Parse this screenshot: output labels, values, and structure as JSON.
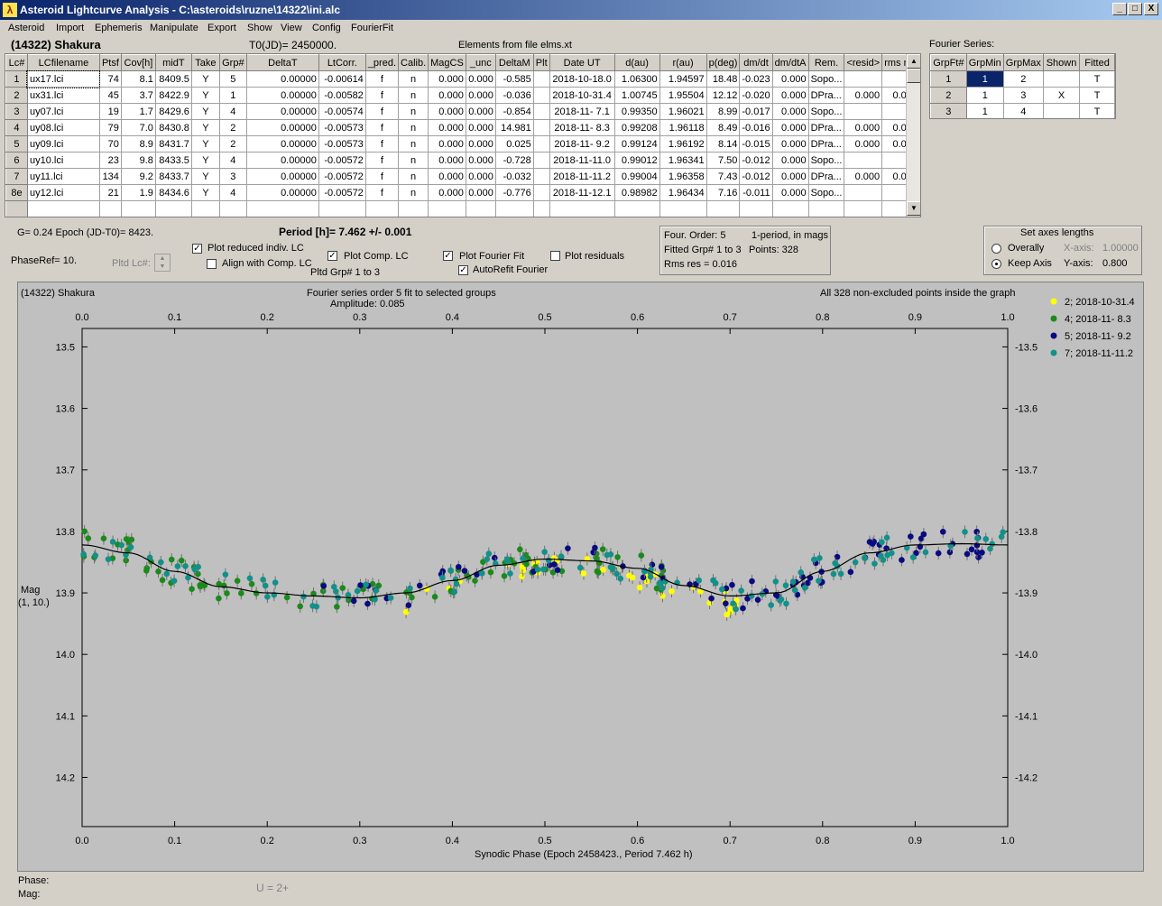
{
  "window": {
    "title": "Asteroid Lightcurve Analysis - C:\\asteroids\\ruzne\\14322\\ini.alc",
    "min_label": "_",
    "max_label": "□",
    "close_label": "X"
  },
  "menu": [
    "Asteroid",
    "Import",
    "Ephemeris",
    "Manipulate",
    "Export",
    "Show",
    "View",
    "Config",
    "FourierFit"
  ],
  "header": {
    "asteroid": "(14322) Shakura",
    "t0": "T0(JD)= 2450000.",
    "elements": "Elements from file elms.xt",
    "fourier_label": "Fourier Series:"
  },
  "lc_table": {
    "columns": [
      "Lc#",
      "LCfilename",
      "Ptsf",
      "Cov[h]",
      "midT",
      "Take",
      "Grp#",
      "DeltaT",
      "LtCorr.",
      "_pred.",
      "Calib.",
      "MagCS",
      "_unc",
      "DeltaM",
      "Plt",
      "Date UT",
      "d(au)",
      "r(au)",
      "p(deg)",
      "dm/dt",
      "dm/dtA",
      "Rem.",
      "<resid>",
      "rms res"
    ],
    "rows": [
      [
        "1",
        "ux17.lci",
        "74",
        "8.1",
        "8409.5",
        "Y",
        "5",
        "0.00000",
        "-0.00614",
        "f",
        "n",
        "0.000",
        "0.000",
        "-0.585",
        "",
        "2018-10-18.0",
        "1.06300",
        "1.94597",
        "18.48",
        "-0.023",
        "0.000",
        "Sopo...",
        "",
        ""
      ],
      [
        "2",
        "ux31.lci",
        "45",
        "3.7",
        "8422.9",
        "Y",
        "1",
        "0.00000",
        "-0.00582",
        "f",
        "n",
        "0.000",
        "0.000",
        "-0.036",
        "",
        "2018-10-31.4",
        "1.00745",
        "1.95504",
        "12.12",
        "-0.020",
        "0.000",
        "DPra...",
        "0.000",
        "0.018"
      ],
      [
        "3",
        "uy07.lci",
        "19",
        "1.7",
        "8429.6",
        "Y",
        "4",
        "0.00000",
        "-0.00574",
        "f",
        "n",
        "0.000",
        "0.000",
        "-0.854",
        "",
        "2018-11- 7.1",
        "0.99350",
        "1.96021",
        "8.99",
        "-0.017",
        "0.000",
        "Sopo...",
        "",
        ""
      ],
      [
        "4",
        "uy08.lci",
        "79",
        "7.0",
        "8430.8",
        "Y",
        "2",
        "0.00000",
        "-0.00573",
        "f",
        "n",
        "0.000",
        "0.000",
        "14.981",
        "",
        "2018-11- 8.3",
        "0.99208",
        "1.96118",
        "8.49",
        "-0.016",
        "0.000",
        "DPra...",
        "0.000",
        "0.015"
      ],
      [
        "5",
        "uy09.lci",
        "70",
        "8.9",
        "8431.7",
        "Y",
        "2",
        "0.00000",
        "-0.00573",
        "f",
        "n",
        "0.000",
        "0.000",
        "0.025",
        "",
        "2018-11- 9.2",
        "0.99124",
        "1.96192",
        "8.14",
        "-0.015",
        "0.000",
        "DPra...",
        "0.000",
        "0.013"
      ],
      [
        "6",
        "uy10.lci",
        "23",
        "9.8",
        "8433.5",
        "Y",
        "4",
        "0.00000",
        "-0.00572",
        "f",
        "n",
        "0.000",
        "0.000",
        "-0.728",
        "",
        "2018-11-11.0",
        "0.99012",
        "1.96341",
        "7.50",
        "-0.012",
        "0.000",
        "Sopo...",
        "",
        ""
      ],
      [
        "7",
        "uy11.lci",
        "134",
        "9.2",
        "8433.7",
        "Y",
        "3",
        "0.00000",
        "-0.00572",
        "f",
        "n",
        "0.000",
        "0.000",
        "-0.032",
        "",
        "2018-11-11.2",
        "0.99004",
        "1.96358",
        "7.43",
        "-0.012",
        "0.000",
        "DPra...",
        "0.000",
        "0.017"
      ],
      [
        "8e",
        "uy12.lci",
        "21",
        "1.9",
        "8434.6",
        "Y",
        "4",
        "0.00000",
        "-0.00572",
        "f",
        "n",
        "0.000",
        "0.000",
        "-0.776",
        "",
        "2018-11-12.1",
        "0.98982",
        "1.96434",
        "7.16",
        "-0.011",
        "0.000",
        "Sopo...",
        "",
        ""
      ]
    ]
  },
  "fourier_table": {
    "columns": [
      "GrpFt#",
      "GrpMin",
      "GrpMax",
      "Shown",
      "Fitted"
    ],
    "rows": [
      [
        "1",
        "1",
        "2",
        "",
        "T"
      ],
      [
        "2",
        "1",
        "3",
        "X",
        "T"
      ],
      [
        "3",
        "1",
        "4",
        "",
        "T"
      ]
    ]
  },
  "controls": {
    "g_line": "G= 0.24   Epoch (JD-T0)= 8423.",
    "period": "Period [h]= 7.462 +/- 0.001",
    "phaseref": "PhaseRef= 10.",
    "pltd_lc": "Pltd Lc#:",
    "plot_reduced": "Plot reduced indiv. LC",
    "align_comp": "Align with Comp. LC",
    "plot_comp": "Plot Comp. LC",
    "pltd_grp": "Pltd Grp#  1   to   3",
    "plot_fourier": "Plot Fourier Fit",
    "autorefit": "AutoRefit Fourier",
    "plot_residuals": "Plot residuals",
    "check_mark": "✓",
    "info1": "Four. Order:  5",
    "info2": "1-period, in mags",
    "info3": "Fitted Grp# 1 to 3",
    "info4": "Points: 328",
    "info5": "Rms res     = 0.016",
    "axes_title": "Set axes lengths",
    "overally": "Overally",
    "keep_axis": "Keep Axis",
    "xaxis_label": "X-axis:",
    "xaxis_val": "1.00000",
    "yaxis_label": "Y-axis:",
    "yaxis_val": "0.800"
  },
  "plot": {
    "name": "(14322) Shakura",
    "subtitle1": "Fourier series order 5 fit to selected groups",
    "subtitle2": "Amplitude: 0.085",
    "note": "All 328 non-excluded points inside the graph",
    "xlabel": "Synodic Phase (Epoch 2458423., Period 7.462 h)",
    "ylabel1": "Mag",
    "ylabel2": "(1, 10.)"
  },
  "chart_data": {
    "type": "scatter",
    "xlim": [
      0,
      1
    ],
    "ylim": [
      14.28,
      13.47
    ],
    "x_ticks": [
      "0.0",
      "0.1",
      "0.2",
      "0.3",
      "0.4",
      "0.5",
      "0.6",
      "0.7",
      "0.8",
      "0.9",
      "1.0"
    ],
    "y_ticks": [
      "13.5",
      "13.6",
      "13.7",
      "13.8",
      "13.9",
      "14.0",
      "14.1",
      "14.2"
    ],
    "series": [
      {
        "name": "2; 2018-10-31.4",
        "color": "#ffff00"
      },
      {
        "name": "4; 2018-11- 8.3",
        "color": "#1a8a1a"
      },
      {
        "name": "5; 2018-11- 9.2",
        "color": "#0a0a80"
      },
      {
        "name": "7; 2018-11-11.2",
        "color": "#12908a"
      }
    ],
    "fit_curve": [
      [
        0.0,
        13.822
      ],
      [
        0.05,
        13.835
      ],
      [
        0.1,
        13.865
      ],
      [
        0.15,
        13.89
      ],
      [
        0.2,
        13.9
      ],
      [
        0.25,
        13.905
      ],
      [
        0.3,
        13.908
      ],
      [
        0.35,
        13.9
      ],
      [
        0.4,
        13.88
      ],
      [
        0.45,
        13.855
      ],
      [
        0.5,
        13.845
      ],
      [
        0.55,
        13.848
      ],
      [
        0.6,
        13.86
      ],
      [
        0.65,
        13.888
      ],
      [
        0.7,
        13.905
      ],
      [
        0.75,
        13.9
      ],
      [
        0.8,
        13.865
      ],
      [
        0.85,
        13.835
      ],
      [
        0.9,
        13.822
      ],
      [
        0.95,
        13.82
      ],
      [
        1.0,
        13.822
      ]
    ]
  },
  "bottom": {
    "phase": "Phase:",
    "mag": "Mag:",
    "u": "U = 2+"
  }
}
